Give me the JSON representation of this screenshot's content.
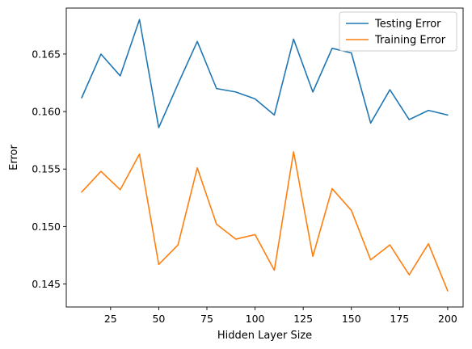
{
  "chart_data": {
    "type": "line",
    "xlabel": "Hidden Layer Size",
    "ylabel": "Error",
    "xlim": [
      2,
      208
    ],
    "ylim": [
      0.143,
      0.169
    ],
    "xticks": [
      25,
      50,
      75,
      100,
      125,
      150,
      175,
      200
    ],
    "xtick_labels": [
      "25",
      "50",
      "75",
      "100",
      "125",
      "150",
      "175",
      "200"
    ],
    "yticks": [
      0.145,
      0.15,
      0.155,
      0.16,
      0.165
    ],
    "ytick_labels": [
      "0.145",
      "0.150",
      "0.155",
      "0.160",
      "0.165"
    ],
    "grid": false,
    "legend_position": "top-right",
    "x": [
      10,
      20,
      30,
      40,
      50,
      60,
      70,
      80,
      90,
      100,
      110,
      120,
      130,
      140,
      150,
      160,
      170,
      180,
      190,
      200
    ],
    "series": [
      {
        "name": "Testing Error",
        "color": "#1f77b4",
        "values": [
          0.1612,
          0.165,
          0.1631,
          0.168,
          0.1586,
          0.1624,
          0.1661,
          0.162,
          0.1617,
          0.1611,
          0.1597,
          0.1663,
          0.1617,
          0.1655,
          0.1651,
          0.159,
          0.1619,
          0.1593,
          0.1601,
          0.1597
        ]
      },
      {
        "name": "Training Error",
        "color": "#ff7f0e",
        "values": [
          0.153,
          0.1548,
          0.1532,
          0.1563,
          0.1467,
          0.1484,
          0.1551,
          0.1502,
          0.1489,
          0.1493,
          0.1462,
          0.1565,
          0.1474,
          0.1533,
          0.1514,
          0.1471,
          0.1484,
          0.1458,
          0.1485,
          0.1444
        ]
      }
    ]
  }
}
